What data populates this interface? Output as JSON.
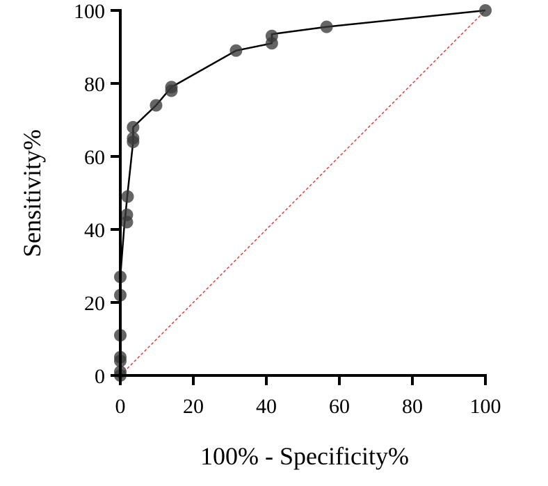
{
  "chart_data": {
    "type": "line",
    "title": "",
    "xlabel": "100% - Specificity%",
    "ylabel": "Sensitivity%",
    "xlim": [
      0,
      100
    ],
    "ylim": [
      0,
      100
    ],
    "x_ticks": [
      0,
      20,
      40,
      60,
      80,
      100
    ],
    "y_ticks": [
      0,
      20,
      40,
      60,
      80,
      100
    ],
    "grid": false,
    "legend": "none",
    "series": [
      {
        "style": "line+markers",
        "color": "#000000",
        "marker_color": "#3a3a3a",
        "points": [
          {
            "x": 0,
            "y": 0
          },
          {
            "x": 0,
            "y": 1
          },
          {
            "x": 0,
            "y": 4
          },
          {
            "x": 0,
            "y": 5
          },
          {
            "x": 0,
            "y": 11
          },
          {
            "x": 0,
            "y": 22
          },
          {
            "x": 0,
            "y": 27
          },
          {
            "x": 1.8,
            "y": 42
          },
          {
            "x": 1.8,
            "y": 44
          },
          {
            "x": 2,
            "y": 49
          },
          {
            "x": 3.5,
            "y": 64
          },
          {
            "x": 3.5,
            "y": 65
          },
          {
            "x": 3.5,
            "y": 68
          },
          {
            "x": 9.8,
            "y": 74
          },
          {
            "x": 14,
            "y": 78
          },
          {
            "x": 14,
            "y": 79
          },
          {
            "x": 31.7,
            "y": 89
          },
          {
            "x": 41.5,
            "y": 91
          },
          {
            "x": 41.5,
            "y": 93
          },
          {
            "x": 56.5,
            "y": 95.5
          },
          {
            "x": 100,
            "y": 100
          }
        ]
      },
      {
        "style": "reference-diagonal",
        "color": "#e8302a",
        "points": [
          {
            "x": 0,
            "y": 0
          },
          {
            "x": 100,
            "y": 100
          }
        ]
      }
    ]
  }
}
